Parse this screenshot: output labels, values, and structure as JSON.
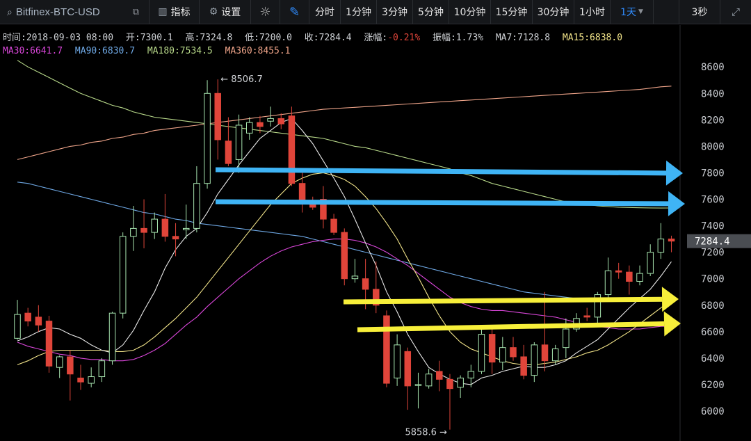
{
  "toolbar": {
    "symbol": "Bitfinex-BTC-USD",
    "indicators": "指标",
    "settings": "设置",
    "periods": [
      "分时",
      "1分钟",
      "3分钟",
      "5分钟",
      "10分钟",
      "15分钟",
      "30分钟",
      "1小时"
    ],
    "period_selected": "1天",
    "refresh": "3秒",
    "accent": "#2f8cff"
  },
  "info": {
    "time": "时间:2018-09-03 08:00",
    "open": "开:7300.1",
    "high": "高:7324.8",
    "low": "低:7200.0",
    "close": "收:7284.4",
    "change_label": "涨幅:",
    "change_value": "-0.21%",
    "amplitude": "振幅:1.73%",
    "ma7": "MA7:7128.8",
    "ma15": "MA15:6838.0",
    "ma30": "MA30:6641.7",
    "ma90": "MA90:6830.7",
    "ma180": "MA180:7534.5",
    "ma360": "MA360:8455.1"
  },
  "chart_data": {
    "type": "candlestick",
    "ylim": [
      5800,
      8700
    ],
    "yticks": [
      6000,
      6200,
      6400,
      6600,
      6800,
      7000,
      7200,
      7400,
      7600,
      7800,
      8000,
      8200,
      8400,
      8600
    ],
    "current_price": "7284.4",
    "max_label": "8506.7",
    "min_label": "5858.6",
    "colors": {
      "up": "#a8e6b0",
      "down": "#e0453a",
      "ma7": "#e8e8e8",
      "ma15": "#f3e58a",
      "ma30": "#d946d9",
      "ma90": "#6fa9e6",
      "ma180": "#b8d98a",
      "ma360": "#f0a58a",
      "blue_arrow": "#3fb4f5",
      "yellow_arrow": "#f7ef3a"
    },
    "candles": [
      {
        "o": 6550,
        "h": 6840,
        "l": 6540,
        "c": 6730
      },
      {
        "o": 6740,
        "h": 6780,
        "l": 6640,
        "c": 6680
      },
      {
        "o": 6710,
        "h": 6800,
        "l": 6600,
        "c": 6650
      },
      {
        "o": 6680,
        "h": 6720,
        "l": 6290,
        "c": 6340
      },
      {
        "o": 6330,
        "h": 6420,
        "l": 6250,
        "c": 6410
      },
      {
        "o": 6410,
        "h": 6460,
        "l": 6080,
        "c": 6280
      },
      {
        "o": 6250,
        "h": 6350,
        "l": 6160,
        "c": 6220
      },
      {
        "o": 6210,
        "h": 6330,
        "l": 6180,
        "c": 6260
      },
      {
        "o": 6260,
        "h": 6400,
        "l": 6220,
        "c": 6380
      },
      {
        "o": 6380,
        "h": 6750,
        "l": 6350,
        "c": 6740
      },
      {
        "o": 6740,
        "h": 7350,
        "l": 6700,
        "c": 7320
      },
      {
        "o": 7320,
        "h": 7550,
        "l": 7210,
        "c": 7380
      },
      {
        "o": 7380,
        "h": 7600,
        "l": 7230,
        "c": 7350
      },
      {
        "o": 7350,
        "h": 7500,
        "l": 7300,
        "c": 7450
      },
      {
        "o": 7450,
        "h": 7640,
        "l": 7280,
        "c": 7320
      },
      {
        "o": 7320,
        "h": 7420,
        "l": 7170,
        "c": 7300
      },
      {
        "o": 7370,
        "h": 7560,
        "l": 7300,
        "c": 7380
      },
      {
        "o": 7380,
        "h": 7850,
        "l": 7350,
        "c": 7720
      },
      {
        "o": 7720,
        "h": 8500,
        "l": 7680,
        "c": 8400
      },
      {
        "o": 8400,
        "h": 8506,
        "l": 7900,
        "c": 8050
      },
      {
        "o": 8040,
        "h": 8220,
        "l": 7850,
        "c": 7870
      },
      {
        "o": 7900,
        "h": 8240,
        "l": 7800,
        "c": 8160
      },
      {
        "o": 8100,
        "h": 8220,
        "l": 8050,
        "c": 8180
      },
      {
        "o": 8180,
        "h": 8230,
        "l": 8100,
        "c": 8150
      },
      {
        "o": 8190,
        "h": 8300,
        "l": 8150,
        "c": 8210
      },
      {
        "o": 8210,
        "h": 8250,
        "l": 8130,
        "c": 8170
      },
      {
        "o": 8230,
        "h": 8300,
        "l": 7700,
        "c": 7720
      },
      {
        "o": 7720,
        "h": 7800,
        "l": 7500,
        "c": 7590
      },
      {
        "o": 7590,
        "h": 7620,
        "l": 7520,
        "c": 7540
      },
      {
        "o": 7600,
        "h": 7700,
        "l": 7380,
        "c": 7450
      },
      {
        "o": 7450,
        "h": 7490,
        "l": 7330,
        "c": 7350
      },
      {
        "o": 7350,
        "h": 7380,
        "l": 6950,
        "c": 7000
      },
      {
        "o": 7000,
        "h": 7150,
        "l": 6970,
        "c": 7020
      },
      {
        "o": 7000,
        "h": 7150,
        "l": 6770,
        "c": 6920
      },
      {
        "o": 6920,
        "h": 7130,
        "l": 6740,
        "c": 6800
      },
      {
        "o": 6720,
        "h": 6760,
        "l": 6180,
        "c": 6210
      },
      {
        "o": 6250,
        "h": 6580,
        "l": 6190,
        "c": 6500
      },
      {
        "o": 6450,
        "h": 6480,
        "l": 6010,
        "c": 6190
      },
      {
        "o": 6200,
        "h": 6290,
        "l": 6020,
        "c": 6200
      },
      {
        "o": 6190,
        "h": 6320,
        "l": 6170,
        "c": 6280
      },
      {
        "o": 6300,
        "h": 6380,
        "l": 6150,
        "c": 6240
      },
      {
        "o": 6240,
        "h": 6280,
        "l": 5860,
        "c": 6170
      },
      {
        "o": 6180,
        "h": 6270,
        "l": 6100,
        "c": 6250
      },
      {
        "o": 6250,
        "h": 6350,
        "l": 6180,
        "c": 6300
      },
      {
        "o": 6300,
        "h": 6630,
        "l": 6280,
        "c": 6580
      },
      {
        "o": 6580,
        "h": 6620,
        "l": 6280,
        "c": 6370
      },
      {
        "o": 6370,
        "h": 6560,
        "l": 6310,
        "c": 6480
      },
      {
        "o": 6480,
        "h": 6560,
        "l": 6380,
        "c": 6410
      },
      {
        "o": 6410,
        "h": 6500,
        "l": 6240,
        "c": 6270
      },
      {
        "o": 6270,
        "h": 6520,
        "l": 6220,
        "c": 6500
      },
      {
        "o": 6500,
        "h": 6900,
        "l": 6300,
        "c": 6380
      },
      {
        "o": 6380,
        "h": 6500,
        "l": 6350,
        "c": 6470
      },
      {
        "o": 6480,
        "h": 6700,
        "l": 6400,
        "c": 6620
      },
      {
        "o": 6620,
        "h": 6740,
        "l": 6600,
        "c": 6700
      },
      {
        "o": 6720,
        "h": 6780,
        "l": 6680,
        "c": 6710
      },
      {
        "o": 6710,
        "h": 6900,
        "l": 6640,
        "c": 6880
      },
      {
        "o": 6880,
        "h": 7160,
        "l": 6850,
        "c": 7060
      },
      {
        "o": 7060,
        "h": 7120,
        "l": 7000,
        "c": 7050
      },
      {
        "o": 7050,
        "h": 7100,
        "l": 6880,
        "c": 6980
      },
      {
        "o": 6980,
        "h": 7100,
        "l": 6950,
        "c": 7040
      },
      {
        "o": 7040,
        "h": 7260,
        "l": 7020,
        "c": 7200
      },
      {
        "o": 7200,
        "h": 7420,
        "l": 7150,
        "c": 7300
      },
      {
        "o": 7300,
        "h": 7325,
        "l": 7200,
        "c": 7284
      }
    ],
    "ma7": [
      6530,
      6560,
      6600,
      6630,
      6620,
      6580,
      6550,
      6500,
      6460,
      6440,
      6500,
      6610,
      6760,
      6900,
      7080,
      7220,
      7320,
      7380,
      7500,
      7640,
      7750,
      7860,
      7960,
      8060,
      8120,
      8180,
      8210,
      8120,
      8020,
      7890,
      7760,
      7620,
      7450,
      7270,
      7100,
      6900,
      6750,
      6580,
      6450,
      6330,
      6280,
      6240,
      6210,
      6200,
      6250,
      6270,
      6300,
      6320,
      6340,
      6330,
      6330,
      6350,
      6380,
      6440,
      6490,
      6540,
      6620,
      6700,
      6780,
      6850,
      6920,
      7020,
      7128.8
    ],
    "ma15": [
      6350,
      6380,
      6420,
      6450,
      6460,
      6460,
      6460,
      6460,
      6460,
      6450,
      6450,
      6460,
      6500,
      6560,
      6630,
      6700,
      6780,
      6860,
      6960,
      7060,
      7160,
      7260,
      7360,
      7460,
      7560,
      7640,
      7720,
      7760,
      7790,
      7800,
      7780,
      7750,
      7700,
      7620,
      7530,
      7420,
      7300,
      7150,
      7010,
      6860,
      6720,
      6600,
      6520,
      6470,
      6440,
      6410,
      6380,
      6360,
      6350,
      6350,
      6360,
      6370,
      6390,
      6410,
      6440,
      6460,
      6500,
      6550,
      6600,
      6660,
      6720,
      6780,
      6838
    ],
    "ma30": [
      6520,
      6490,
      6470,
      6450,
      6430,
      6420,
      6400,
      6390,
      6390,
      6380,
      6380,
      6390,
      6420,
      6460,
      6510,
      6580,
      6650,
      6710,
      6790,
      6860,
      6930,
      7000,
      7060,
      7120,
      7170,
      7210,
      7240,
      7260,
      7280,
      7290,
      7300,
      7300,
      7290,
      7270,
      7240,
      7200,
      7150,
      7100,
      7040,
      6980,
      6920,
      6860,
      6820,
      6790,
      6770,
      6760,
      6760,
      6750,
      6740,
      6730,
      6720,
      6710,
      6690,
      6670,
      6650,
      6640,
      6630,
      6620,
      6620,
      6620,
      6630,
      6640,
      6641.7
    ],
    "ma90": [
      7730,
      7720,
      7700,
      7680,
      7660,
      7640,
      7620,
      7600,
      7580,
      7560,
      7540,
      7520,
      7500,
      7490,
      7470,
      7450,
      7440,
      7420,
      7410,
      7400,
      7390,
      7380,
      7370,
      7360,
      7350,
      7340,
      7330,
      7320,
      7300,
      7280,
      7260,
      7240,
      7220,
      7200,
      7180,
      7160,
      7140,
      7120,
      7100,
      7080,
      7060,
      7040,
      7020,
      7000,
      6980,
      6960,
      6940,
      6920,
      6900,
      6890,
      6880,
      6870,
      6860,
      6850,
      6850,
      6840,
      6840,
      6840,
      6830,
      6830,
      6830,
      6830,
      6830.7
    ],
    "ma180": [
      8650,
      8600,
      8560,
      8520,
      8480,
      8440,
      8400,
      8370,
      8340,
      8310,
      8290,
      8260,
      8240,
      8220,
      8210,
      8200,
      8190,
      8180,
      8170,
      8160,
      8150,
      8140,
      8130,
      8120,
      8110,
      8100,
      8090,
      8080,
      8070,
      8060,
      8040,
      8020,
      8000,
      7990,
      7970,
      7950,
      7930,
      7910,
      7890,
      7870,
      7850,
      7830,
      7800,
      7780,
      7750,
      7720,
      7700,
      7680,
      7660,
      7640,
      7620,
      7600,
      7580,
      7570,
      7560,
      7550,
      7545,
      7540,
      7538,
      7536,
      7535,
      7534,
      7534.5
    ],
    "ma360": [
      7900,
      7920,
      7940,
      7960,
      7980,
      8000,
      8010,
      8030,
      8040,
      8060,
      8070,
      8090,
      8100,
      8120,
      8130,
      8140,
      8150,
      8160,
      8170,
      8180,
      8190,
      8200,
      8210,
      8220,
      8230,
      8240,
      8250,
      8260,
      8270,
      8280,
      8285,
      8290,
      8295,
      8300,
      8305,
      8310,
      8315,
      8320,
      8325,
      8330,
      8335,
      8340,
      8345,
      8350,
      8355,
      8360,
      8365,
      8370,
      8375,
      8380,
      8385,
      8390,
      8395,
      8400,
      8405,
      8410,
      8415,
      8420,
      8425,
      8430,
      8440,
      8450,
      8455.1
    ]
  }
}
